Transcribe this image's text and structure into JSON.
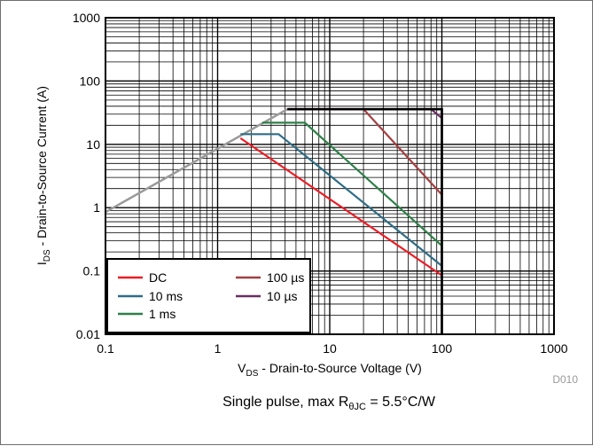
{
  "chart_data": {
    "type": "line",
    "x_scale": "log",
    "y_scale": "log",
    "xlim": [
      0.1,
      1000
    ],
    "ylim": [
      0.01,
      1000
    ],
    "grid": true,
    "x_ticks": [
      {
        "value": 0.1,
        "label": "0.1"
      },
      {
        "value": 1,
        "label": "1"
      },
      {
        "value": 10,
        "label": "10"
      },
      {
        "value": 100,
        "label": "100"
      },
      {
        "value": 1000,
        "label": "1000"
      }
    ],
    "y_ticks": [
      {
        "value": 0.01,
        "label": "0.01"
      },
      {
        "value": 0.1,
        "label": "0.1"
      },
      {
        "value": 1,
        "label": "1"
      },
      {
        "value": 10,
        "label": "10"
      },
      {
        "value": 100,
        "label": "100"
      },
      {
        "value": 1000,
        "label": "1000"
      }
    ],
    "xlabel": {
      "main": "V",
      "sub": "DS",
      "rest": " - Drain-to-Source Voltage (V)"
    },
    "ylabel": {
      "main": "I",
      "sub": "DS",
      "rest": " - Drain-to-Source Current (A)"
    },
    "legend_position": "bottom-left",
    "series": [
      {
        "name": "DC",
        "color": "#ee1c25",
        "points": [
          [
            1.6,
            12.5
          ],
          [
            100,
            0.085
          ]
        ]
      },
      {
        "name": "10 ms",
        "color": "#2e6d86",
        "points": [
          [
            1.6,
            14.5
          ],
          [
            3.5,
            14.5
          ],
          [
            100,
            0.12
          ]
        ]
      },
      {
        "name": "1 ms",
        "color": "#2e8049",
        "points": [
          [
            2.5,
            22
          ],
          [
            6,
            22
          ],
          [
            100,
            0.25
          ]
        ]
      },
      {
        "name": "100 µs",
        "color": "#a33f41",
        "points": [
          [
            4.2,
            36
          ],
          [
            20,
            36
          ],
          [
            100,
            1.6
          ]
        ]
      },
      {
        "name": "10 µs",
        "color": "#6a2d63",
        "points": [
          [
            4.2,
            36
          ],
          [
            80,
            36
          ],
          [
            100,
            26
          ]
        ]
      }
    ],
    "limit_lines": [
      {
        "kind": "rds_on_limit",
        "color": "#9a9a9a",
        "points": [
          [
            0.1,
            0.85
          ],
          [
            4.2,
            36
          ]
        ]
      },
      {
        "kind": "boundary",
        "color": "#000000",
        "points": [
          [
            4.2,
            36
          ],
          [
            100,
            36
          ],
          [
            100,
            0.01
          ]
        ]
      }
    ],
    "legend_columns": [
      [
        "DC",
        "10 ms",
        "1 ms"
      ],
      [
        "100 µs",
        "10 µs"
      ]
    ],
    "figure_id": "D010",
    "caption": {
      "pre": "Single pulse, max R",
      "sub": "θJC",
      "post": " = 5.5°C/W"
    }
  }
}
